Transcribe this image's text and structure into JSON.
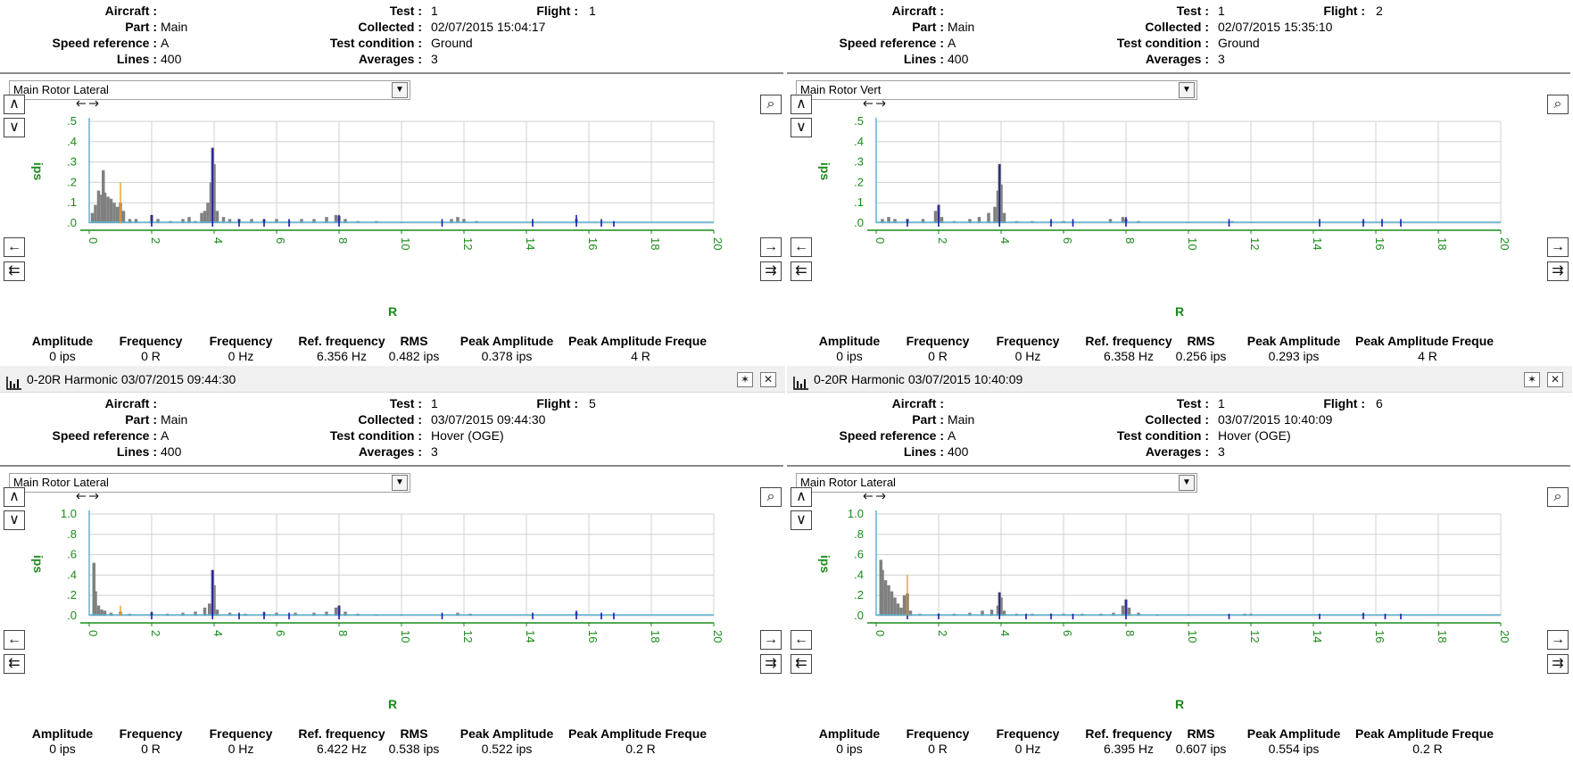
{
  "labels": {
    "aircraft": "Aircraft :",
    "part": "Part :",
    "speed_reference": "Speed reference :",
    "lines": "Lines :",
    "test": "Test :",
    "collected": "Collected :",
    "test_condition": "Test condition :",
    "averages": "Averages :",
    "flight": "Flight :"
  },
  "stat_headers": [
    "Amplitude",
    "Frequency",
    "Frequency",
    "Ref. frequency",
    "RMS",
    "Peak Amplitude",
    "Peak Amplitude Freque"
  ],
  "nav_icons": [
    "scroll-up-icon",
    "scroll-down-icon",
    "zoom-icon",
    "pan-left-icon",
    "pan-right-icon",
    "rewind-icon",
    "fast-forward-icon",
    "pan-arrows-icon"
  ],
  "colors": {
    "spectrum": "#808080",
    "baseline": "#5ab4d6",
    "harmonic_marker": "#1a1aaa",
    "ref_marker": "#e8a020",
    "axis_text": "#1a8a1a",
    "grid": "#d0d0d0"
  },
  "panes": [
    {
      "id": "tl",
      "title": null,
      "info": {
        "aircraft": "",
        "part": "Main",
        "speed_reference": "A",
        "lines": "400",
        "test": "1",
        "collected": "02/07/2015 15:04:17",
        "test_condition": "Ground",
        "averages": "3",
        "flight": "1"
      },
      "selector": "Main Rotor Lateral",
      "stats": [
        "0 ips",
        "0 R",
        "0 Hz",
        "6.356 Hz",
        "0.482 ips",
        "0.378 ips",
        "4 R"
      ],
      "chart_data": {
        "type": "bar",
        "xlabel": "R",
        "ylabel": "ips",
        "xlim": [
          0,
          20
        ],
        "ylim": [
          0,
          0.5
        ],
        "xticks": [
          "0",
          "2",
          "4",
          "6",
          "8",
          "10",
          "12",
          "14",
          "16",
          "18",
          "20"
        ],
        "yticks": [
          ".0",
          ".1",
          ".2",
          ".3",
          ".4",
          ".5"
        ],
        "spectrum": [
          [
            0.1,
            0.05
          ],
          [
            0.2,
            0.09
          ],
          [
            0.3,
            0.16
          ],
          [
            0.4,
            0.14
          ],
          [
            0.45,
            0.26
          ],
          [
            0.5,
            0.15
          ],
          [
            0.6,
            0.13
          ],
          [
            0.7,
            0.12
          ],
          [
            0.8,
            0.1
          ],
          [
            0.9,
            0.08
          ],
          [
            1.0,
            0.1
          ],
          [
            1.1,
            0.06
          ],
          [
            1.3,
            0.02
          ],
          [
            1.5,
            0.02
          ],
          [
            2.0,
            0.04
          ],
          [
            2.2,
            0.02
          ],
          [
            2.6,
            0.01
          ],
          [
            3.0,
            0.02
          ],
          [
            3.2,
            0.03
          ],
          [
            3.4,
            0.01
          ],
          [
            3.6,
            0.05
          ],
          [
            3.7,
            0.06
          ],
          [
            3.8,
            0.1
          ],
          [
            3.9,
            0.2
          ],
          [
            3.95,
            0.37
          ],
          [
            4.0,
            0.29
          ],
          [
            4.1,
            0.06
          ],
          [
            4.3,
            0.03
          ],
          [
            4.5,
            0.02
          ],
          [
            4.8,
            0.02
          ],
          [
            5.2,
            0.02
          ],
          [
            5.6,
            0.02
          ],
          [
            6.0,
            0.02
          ],
          [
            6.4,
            0.01
          ],
          [
            6.8,
            0.02
          ],
          [
            7.2,
            0.02
          ],
          [
            7.6,
            0.03
          ],
          [
            7.9,
            0.04
          ],
          [
            8.0,
            0.035
          ],
          [
            8.2,
            0.02
          ],
          [
            8.6,
            0.01
          ],
          [
            9.2,
            0.01
          ],
          [
            10.0,
            0.005
          ],
          [
            11.6,
            0.02
          ],
          [
            11.8,
            0.03
          ],
          [
            12.0,
            0.02
          ],
          [
            12.4,
            0.01
          ],
          [
            15.6,
            0.02
          ]
        ],
        "harmonics": [
          [
            2.0,
            0.04
          ],
          [
            3.95,
            0.37
          ],
          [
            4.8,
            0.02
          ],
          [
            5.6,
            0.02
          ],
          [
            6.4,
            0.02
          ],
          [
            8.0,
            0.04
          ],
          [
            11.3,
            0.02
          ],
          [
            14.2,
            0.02
          ],
          [
            15.6,
            0.04
          ],
          [
            16.4,
            0.02
          ],
          [
            16.8,
            0.01
          ]
        ],
        "ref_markers": [
          [
            1.0,
            0.2
          ]
        ]
      }
    },
    {
      "id": "tr",
      "title": null,
      "info": {
        "aircraft": "",
        "part": "Main",
        "speed_reference": "A",
        "lines": "400",
        "test": "1",
        "collected": "02/07/2015 15:35:10",
        "test_condition": "Ground",
        "averages": "3",
        "flight": "2"
      },
      "selector": "Main Rotor Vert",
      "stats": [
        "0 ips",
        "0 R",
        "0 Hz",
        "6.358 Hz",
        "0.256 ips",
        "0.293 ips",
        "4 R"
      ],
      "chart_data": {
        "type": "bar",
        "xlabel": "R",
        "ylabel": "ips",
        "xlim": [
          0,
          20
        ],
        "ylim": [
          0,
          0.5
        ],
        "xticks": [
          "0",
          "2",
          "4",
          "6",
          "8",
          "10",
          "12",
          "14",
          "16",
          "18",
          "20"
        ],
        "yticks": [
          ".0",
          ".1",
          ".2",
          ".3",
          ".4",
          ".5"
        ],
        "spectrum": [
          [
            0.2,
            0.02
          ],
          [
            0.4,
            0.03
          ],
          [
            0.6,
            0.02
          ],
          [
            1.0,
            0.02
          ],
          [
            1.5,
            0.02
          ],
          [
            1.9,
            0.06
          ],
          [
            2.0,
            0.09
          ],
          [
            2.1,
            0.03
          ],
          [
            2.5,
            0.01
          ],
          [
            3.0,
            0.02
          ],
          [
            3.3,
            0.03
          ],
          [
            3.6,
            0.05
          ],
          [
            3.8,
            0.08
          ],
          [
            3.9,
            0.16
          ],
          [
            3.95,
            0.29
          ],
          [
            4.0,
            0.19
          ],
          [
            4.1,
            0.05
          ],
          [
            4.5,
            0.01
          ],
          [
            5.0,
            0.01
          ],
          [
            5.6,
            0.01
          ],
          [
            6.0,
            0.01
          ],
          [
            7.5,
            0.02
          ],
          [
            7.9,
            0.03
          ],
          [
            8.0,
            0.02
          ],
          [
            8.4,
            0.01
          ],
          [
            10.0,
            0.005
          ],
          [
            11.4,
            0.01
          ],
          [
            12.0,
            0.005
          ],
          [
            15.6,
            0.01
          ]
        ],
        "harmonics": [
          [
            1.0,
            0.02
          ],
          [
            2.0,
            0.09
          ],
          [
            3.95,
            0.29
          ],
          [
            5.6,
            0.02
          ],
          [
            6.3,
            0.02
          ],
          [
            8.0,
            0.03
          ],
          [
            11.3,
            0.02
          ],
          [
            14.2,
            0.02
          ],
          [
            15.6,
            0.02
          ],
          [
            16.2,
            0.02
          ],
          [
            16.8,
            0.02
          ]
        ],
        "ref_markers": []
      }
    },
    {
      "id": "bl",
      "title": "0-20R Harmonic 03/07/2015 09:44:30",
      "info": {
        "aircraft": "",
        "part": "Main",
        "speed_reference": "A",
        "lines": "400",
        "test": "1",
        "collected": "03/07/2015 09:44:30",
        "test_condition": "Hover (OGE)",
        "averages": "3",
        "flight": "5"
      },
      "selector": "Main Rotor Lateral",
      "stats": [
        "0 ips",
        "0 R",
        "0 Hz",
        "6.422 Hz",
        "0.538 ips",
        "0.522 ips",
        "0.2 R"
      ],
      "chart_data": {
        "type": "bar",
        "xlabel": "R",
        "ylabel": "ips",
        "xlim": [
          0,
          20
        ],
        "ylim": [
          0,
          1.0
        ],
        "xticks": [
          "0",
          "2",
          "4",
          "6",
          "8",
          "10",
          "12",
          "14",
          "16",
          "18",
          "20"
        ],
        "yticks": [
          ".0",
          ".2",
          ".4",
          ".6",
          ".8",
          "1.0"
        ],
        "spectrum": [
          [
            0.15,
            0.52
          ],
          [
            0.2,
            0.24
          ],
          [
            0.3,
            0.1
          ],
          [
            0.4,
            0.06
          ],
          [
            0.5,
            0.05
          ],
          [
            0.7,
            0.03
          ],
          [
            1.0,
            0.04
          ],
          [
            1.3,
            0.02
          ],
          [
            2.0,
            0.03
          ],
          [
            2.5,
            0.02
          ],
          [
            3.0,
            0.03
          ],
          [
            3.4,
            0.04
          ],
          [
            3.7,
            0.08
          ],
          [
            3.85,
            0.12
          ],
          [
            3.95,
            0.45
          ],
          [
            4.0,
            0.3
          ],
          [
            4.1,
            0.06
          ],
          [
            4.5,
            0.03
          ],
          [
            5.0,
            0.02
          ],
          [
            5.6,
            0.03
          ],
          [
            6.0,
            0.03
          ],
          [
            6.6,
            0.03
          ],
          [
            7.2,
            0.03
          ],
          [
            7.6,
            0.04
          ],
          [
            7.9,
            0.08
          ],
          [
            8.0,
            0.1
          ],
          [
            8.2,
            0.04
          ],
          [
            8.6,
            0.02
          ],
          [
            9.2,
            0.01
          ],
          [
            10.0,
            0.01
          ],
          [
            11.8,
            0.03
          ],
          [
            12.2,
            0.02
          ],
          [
            15.6,
            0.03
          ]
        ],
        "harmonics": [
          [
            2.0,
            0.04
          ],
          [
            3.95,
            0.45
          ],
          [
            4.8,
            0.03
          ],
          [
            5.6,
            0.04
          ],
          [
            6.4,
            0.03
          ],
          [
            8.0,
            0.1
          ],
          [
            11.3,
            0.03
          ],
          [
            14.2,
            0.03
          ],
          [
            15.6,
            0.05
          ],
          [
            16.4,
            0.03
          ],
          [
            16.8,
            0.03
          ]
        ],
        "ref_markers": [
          [
            1.0,
            0.1
          ]
        ]
      }
    },
    {
      "id": "br",
      "title": "0-20R Harmonic 03/07/2015 10:40:09",
      "info": {
        "aircraft": "",
        "part": "Main",
        "speed_reference": "A",
        "lines": "400",
        "test": "1",
        "collected": "03/07/2015 10:40:09",
        "test_condition": "Hover (OGE)",
        "averages": "3",
        "flight": "6"
      },
      "selector": "Main Rotor Lateral",
      "stats": [
        "0 ips",
        "0 R",
        "0 Hz",
        "6.395 Hz",
        "0.607 ips",
        "0.554 ips",
        "0.2 R"
      ],
      "chart_data": {
        "type": "bar",
        "xlabel": "R",
        "ylabel": "ips",
        "xlim": [
          0,
          20
        ],
        "ylim": [
          0,
          1.0
        ],
        "xticks": [
          "0",
          "2",
          "4",
          "6",
          "8",
          "10",
          "12",
          "14",
          "16",
          "18",
          "20"
        ],
        "yticks": [
          ".0",
          ".2",
          ".4",
          ".6",
          ".8",
          "1.0"
        ],
        "spectrum": [
          [
            0.15,
            0.55
          ],
          [
            0.2,
            0.45
          ],
          [
            0.3,
            0.35
          ],
          [
            0.4,
            0.3
          ],
          [
            0.5,
            0.24
          ],
          [
            0.6,
            0.18
          ],
          [
            0.7,
            0.12
          ],
          [
            0.8,
            0.08
          ],
          [
            0.9,
            0.2
          ],
          [
            1.0,
            0.22
          ],
          [
            1.1,
            0.05
          ],
          [
            1.4,
            0.02
          ],
          [
            2.0,
            0.02
          ],
          [
            2.5,
            0.02
          ],
          [
            3.0,
            0.03
          ],
          [
            3.4,
            0.05
          ],
          [
            3.7,
            0.06
          ],
          [
            3.9,
            0.1
          ],
          [
            3.95,
            0.23
          ],
          [
            4.0,
            0.18
          ],
          [
            4.1,
            0.05
          ],
          [
            4.5,
            0.02
          ],
          [
            5.0,
            0.02
          ],
          [
            5.6,
            0.02
          ],
          [
            6.0,
            0.02
          ],
          [
            6.6,
            0.02
          ],
          [
            7.2,
            0.02
          ],
          [
            7.6,
            0.03
          ],
          [
            7.9,
            0.1
          ],
          [
            8.0,
            0.16
          ],
          [
            8.1,
            0.08
          ],
          [
            8.4,
            0.03
          ],
          [
            9.0,
            0.01
          ],
          [
            10.0,
            0.01
          ],
          [
            11.8,
            0.02
          ],
          [
            12.0,
            0.02
          ],
          [
            15.6,
            0.02
          ]
        ],
        "harmonics": [
          [
            1.0,
            0.22
          ],
          [
            2.0,
            0.02
          ],
          [
            3.95,
            0.23
          ],
          [
            4.8,
            0.02
          ],
          [
            5.6,
            0.02
          ],
          [
            6.3,
            0.02
          ],
          [
            8.0,
            0.16
          ],
          [
            11.3,
            0.02
          ],
          [
            14.2,
            0.02
          ],
          [
            15.6,
            0.03
          ],
          [
            16.3,
            0.02
          ],
          [
            16.8,
            0.02
          ]
        ],
        "ref_markers": [
          [
            1.0,
            0.4
          ]
        ]
      }
    }
  ]
}
